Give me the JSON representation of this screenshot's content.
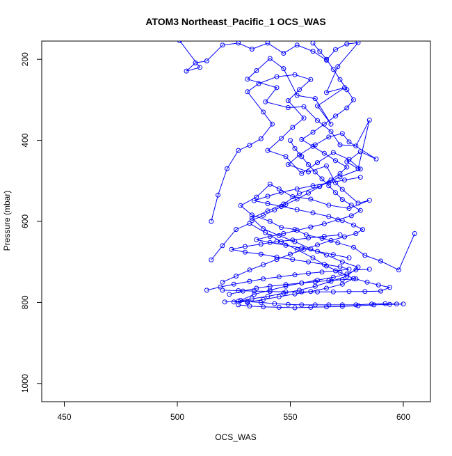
{
  "chart_data": {
    "type": "line",
    "title": "ATOM3 Northeast_Pacific_1 OCS_WAS",
    "xlabel": "OCS_WAS",
    "ylabel": "Pressure (mbar)",
    "xlim": [
      440,
      612
    ],
    "ylim": [
      1045,
      155
    ],
    "y_reversed": true,
    "x_ticks": [
      450,
      500,
      550,
      600
    ],
    "y_ticks": [
      200,
      400,
      600,
      800,
      1000
    ],
    "grid": false,
    "legend": "none",
    "series_color": "#0000ff",
    "marker": "open-circle",
    "series": [
      {
        "points": [
          [
            501,
            154
          ],
          [
            510,
            220
          ],
          [
            504,
            229
          ],
          [
            508,
            209
          ],
          [
            513,
            204
          ],
          [
            520,
            165
          ],
          [
            527,
            160
          ],
          [
            533,
            175
          ],
          [
            540,
            160
          ],
          [
            547,
            185
          ],
          [
            553,
            165
          ],
          [
            560,
            180
          ],
          [
            566,
            202
          ],
          [
            570,
            176
          ],
          [
            575,
            162
          ],
          [
            580,
            159
          ],
          [
            571,
            218
          ],
          [
            566,
            282
          ],
          [
            574,
            270
          ],
          [
            562,
            315
          ],
          [
            568,
            360
          ],
          [
            561,
            297
          ],
          [
            553,
            289
          ],
          [
            547,
            223
          ],
          [
            541,
            198
          ],
          [
            535,
            228
          ],
          [
            531,
            249
          ],
          [
            544,
            270
          ],
          [
            539,
            305
          ],
          [
            549,
            319
          ],
          [
            556,
            317
          ],
          [
            562,
            351
          ],
          [
            568,
            378
          ],
          [
            572,
            411
          ],
          [
            579,
            414
          ],
          [
            585,
            350
          ],
          [
            580,
            470
          ],
          [
            575,
            453
          ],
          [
            581,
            428
          ],
          [
            588,
            446
          ],
          [
            576,
            404
          ],
          [
            573,
            383
          ],
          [
            567,
            392
          ],
          [
            561,
            411
          ],
          [
            554,
            436
          ],
          [
            549,
            460
          ],
          [
            558,
            478
          ],
          [
            566,
            463
          ],
          [
            570,
            505
          ],
          [
            573,
            521
          ],
          [
            580,
            555
          ],
          [
            585,
            548
          ],
          [
            576,
            568
          ],
          [
            567,
            560
          ],
          [
            559,
            545
          ],
          [
            551,
            539
          ],
          [
            545,
            520
          ],
          [
            541,
            508
          ],
          [
            535,
            540
          ],
          [
            528,
            561
          ],
          [
            533,
            584
          ],
          [
            541,
            600
          ],
          [
            546,
            615
          ],
          [
            552,
            620
          ],
          [
            557,
            633
          ],
          [
            564,
            642
          ],
          [
            571,
            653
          ],
          [
            578,
            664
          ],
          [
            583,
            684
          ],
          [
            590,
            698
          ],
          [
            598,
            720
          ],
          [
            605,
            630
          ]
        ]
      },
      {
        "points": [
          [
            515,
            600
          ],
          [
            518,
            535
          ],
          [
            522,
            470
          ],
          [
            527,
            425
          ],
          [
            532,
            412
          ],
          [
            537,
            396
          ],
          [
            542,
            360
          ],
          [
            538,
            330
          ],
          [
            531,
            280
          ],
          [
            536,
            260
          ],
          [
            544,
            243
          ],
          [
            552,
            238
          ],
          [
            559,
            250
          ],
          [
            554,
            275
          ],
          [
            549,
            302
          ],
          [
            556,
            345
          ],
          [
            551,
            368
          ],
          [
            546,
            395
          ],
          [
            540,
            425
          ],
          [
            548,
            440
          ],
          [
            555,
            482
          ],
          [
            562,
            455
          ],
          [
            569,
            430
          ],
          [
            576,
            447
          ],
          [
            581,
            471
          ],
          [
            572,
            490
          ],
          [
            563,
            513
          ],
          [
            554,
            531
          ],
          [
            547,
            557
          ],
          [
            540,
            574
          ],
          [
            533,
            592
          ],
          [
            538,
            618
          ],
          [
            545,
            635
          ],
          [
            552,
            650
          ],
          [
            559,
            668
          ],
          [
            566,
            683
          ],
          [
            573,
            700
          ],
          [
            580,
            713
          ],
          [
            575,
            735
          ],
          [
            568,
            748
          ],
          [
            561,
            760
          ],
          [
            554,
            770
          ],
          [
            547,
            777
          ],
          [
            540,
            785
          ],
          [
            533,
            791
          ],
          [
            527,
            797
          ],
          [
            521,
            799
          ]
        ]
      },
      {
        "points": [
          [
            515,
            695
          ],
          [
            520,
            660
          ],
          [
            526,
            620
          ],
          [
            532,
            605
          ],
          [
            539,
            628
          ],
          [
            546,
            650
          ],
          [
            553,
            670
          ],
          [
            560,
            690
          ],
          [
            566,
            710
          ],
          [
            572,
            726
          ],
          [
            578,
            741
          ],
          [
            573,
            755
          ],
          [
            566,
            765
          ],
          [
            559,
            773
          ],
          [
            552,
            779
          ],
          [
            545,
            786
          ],
          [
            538,
            793
          ],
          [
            531,
            800
          ],
          [
            528,
            795
          ],
          [
            534,
            780
          ],
          [
            541,
            770
          ],
          [
            548,
            760
          ],
          [
            555,
            752
          ],
          [
            562,
            745
          ],
          [
            569,
            738
          ],
          [
            575,
            730
          ],
          [
            579,
            720
          ],
          [
            585,
            718
          ]
        ]
      },
      {
        "points": [
          [
            513,
            770
          ],
          [
            519,
            762
          ],
          [
            525,
            755
          ],
          [
            532,
            748
          ],
          [
            538,
            742
          ],
          [
            545,
            737
          ],
          [
            552,
            732
          ],
          [
            558,
            728
          ],
          [
            564,
            725
          ],
          [
            570,
            722
          ],
          [
            576,
            718
          ],
          [
            572,
            712
          ],
          [
            565,
            706
          ],
          [
            558,
            700
          ],
          [
            551,
            694
          ],
          [
            544,
            688
          ],
          [
            537,
            681
          ],
          [
            530,
            676
          ],
          [
            524,
            669
          ],
          [
            530,
            662
          ],
          [
            537,
            656
          ],
          [
            544,
            650
          ],
          [
            551,
            646
          ],
          [
            558,
            641
          ],
          [
            565,
            637
          ],
          [
            572,
            633
          ]
        ]
      },
      {
        "points": [
          [
            523,
            780
          ],
          [
            529,
            772
          ],
          [
            535,
            765
          ],
          [
            541,
            760
          ],
          [
            548,
            756
          ],
          [
            555,
            752
          ],
          [
            561,
            749
          ],
          [
            567,
            746
          ],
          [
            573,
            744
          ],
          [
            579,
            742
          ],
          [
            584,
            750
          ],
          [
            589,
            757
          ],
          [
            594,
            763
          ],
          [
            590,
            772
          ],
          [
            583,
            773
          ],
          [
            576,
            773
          ],
          [
            569,
            774
          ],
          [
            562,
            774
          ],
          [
            555,
            774
          ],
          [
            548,
            774
          ],
          [
            541,
            773
          ],
          [
            534,
            772
          ],
          [
            527,
            771
          ],
          [
            520,
            770
          ]
        ]
      },
      {
        "points": [
          [
            525,
            799
          ],
          [
            531,
            798
          ],
          [
            537,
            800
          ],
          [
            543,
            803
          ],
          [
            549,
            805
          ],
          [
            555,
            806
          ],
          [
            561,
            806
          ],
          [
            567,
            806
          ],
          [
            573,
            806
          ],
          [
            579,
            806
          ],
          [
            586,
            804
          ],
          [
            592,
            803
          ],
          [
            597,
            804
          ],
          [
            600,
            804
          ],
          [
            594,
            805
          ],
          [
            587,
            806
          ],
          [
            580,
            808
          ],
          [
            573,
            810
          ],
          [
            566,
            811
          ],
          [
            559,
            812
          ],
          [
            552,
            813
          ],
          [
            545,
            812
          ],
          [
            538,
            811
          ],
          [
            532,
            809
          ],
          [
            527,
            806
          ]
        ]
      },
      {
        "points": [
          [
            520,
            750
          ],
          [
            526,
            735
          ],
          [
            532,
            720
          ],
          [
            538,
            707
          ],
          [
            544,
            694
          ],
          [
            550,
            681
          ],
          [
            556,
            669
          ],
          [
            562,
            658
          ],
          [
            568,
            647
          ],
          [
            574,
            638
          ],
          [
            579,
            630
          ],
          [
            582,
            620
          ],
          [
            578,
            609
          ],
          [
            573,
            598
          ],
          [
            567,
            588
          ],
          [
            560,
            579
          ],
          [
            553,
            571
          ],
          [
            546,
            563
          ],
          [
            540,
            556
          ],
          [
            534,
            549
          ],
          [
            540,
            538
          ],
          [
            546,
            528
          ],
          [
            553,
            520
          ],
          [
            560,
            512
          ],
          [
            567,
            505
          ],
          [
            574,
            498
          ],
          [
            581,
            491
          ]
        ]
      },
      {
        "points": [
          [
            550,
            400
          ],
          [
            552,
            420
          ],
          [
            555,
            440
          ],
          [
            558,
            460
          ],
          [
            561,
            478
          ],
          [
            564,
            495
          ],
          [
            567,
            512
          ],
          [
            570,
            529
          ],
          [
            573,
            546
          ],
          [
            577,
            560
          ],
          [
            581,
            573
          ],
          [
            577,
            586
          ],
          [
            571,
            596
          ],
          [
            565,
            606
          ],
          [
            559,
            614
          ],
          [
            553,
            622
          ],
          [
            547,
            630
          ],
          [
            541,
            637
          ],
          [
            535,
            645
          ],
          [
            541,
            652
          ],
          [
            548,
            659
          ],
          [
            555,
            666
          ],
          [
            562,
            674
          ],
          [
            569,
            682
          ],
          [
            576,
            690
          ]
        ]
      },
      {
        "points": [
          [
            560,
            160
          ],
          [
            563,
            180
          ],
          [
            566,
            200
          ],
          [
            569,
            225
          ],
          [
            572,
            250
          ],
          [
            575,
            275
          ],
          [
            578,
            300
          ],
          [
            575,
            320
          ],
          [
            570,
            340
          ],
          [
            565,
            360
          ],
          [
            560,
            380
          ],
          [
            555,
            398
          ],
          [
            560,
            415
          ],
          [
            565,
            432
          ],
          [
            570,
            450
          ],
          [
            575,
            466
          ],
          [
            572,
            482
          ],
          [
            568,
            498
          ],
          [
            563,
            514
          ],
          [
            558,
            530
          ],
          [
            553,
            545
          ],
          [
            548,
            558
          ],
          [
            543,
            572
          ],
          [
            538,
            585
          ],
          [
            533,
            598
          ]
        ]
      }
    ]
  }
}
